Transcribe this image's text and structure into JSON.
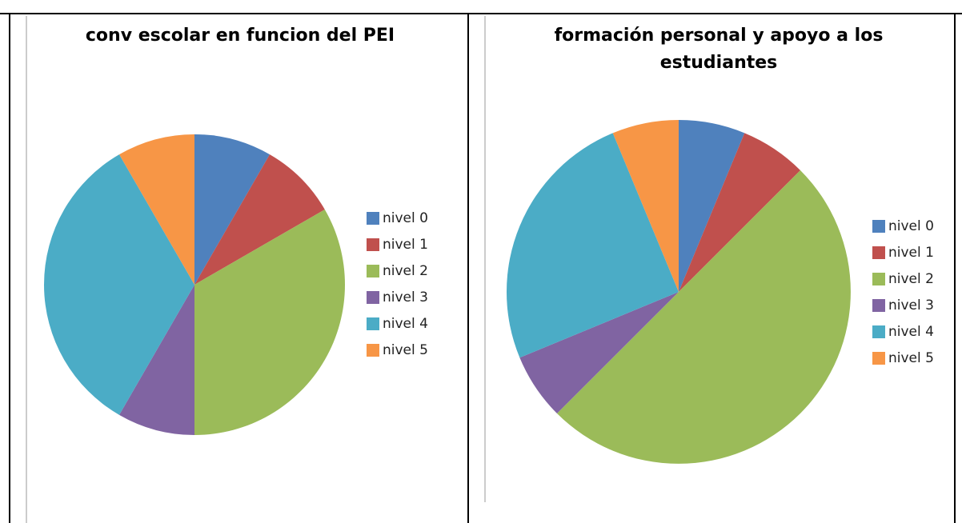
{
  "chart_data": [
    {
      "type": "pie",
      "title": "conv escolar en funcion del PEI",
      "categories": [
        "nivel 0",
        "nivel 1",
        "nivel 2",
        "nivel 3",
        "nivel 4",
        "nivel 5"
      ],
      "values": [
        1,
        1,
        4,
        1,
        4,
        1
      ],
      "colors": [
        "#4f81bd",
        "#c0504d",
        "#9bbb59",
        "#8064a2",
        "#4bacc6",
        "#f79646"
      ],
      "legend": "right"
    },
    {
      "type": "pie",
      "title": "formación personal y apoyo a los estudiantes",
      "categories": [
        "nivel 0",
        "nivel 1",
        "nivel 2",
        "nivel 3",
        "nivel 4",
        "nivel 5"
      ],
      "values": [
        1,
        1,
        8,
        1,
        4,
        1
      ],
      "colors": [
        "#4f81bd",
        "#c0504d",
        "#9bbb59",
        "#8064a2",
        "#4bacc6",
        "#f79646"
      ],
      "legend": "right"
    }
  ]
}
